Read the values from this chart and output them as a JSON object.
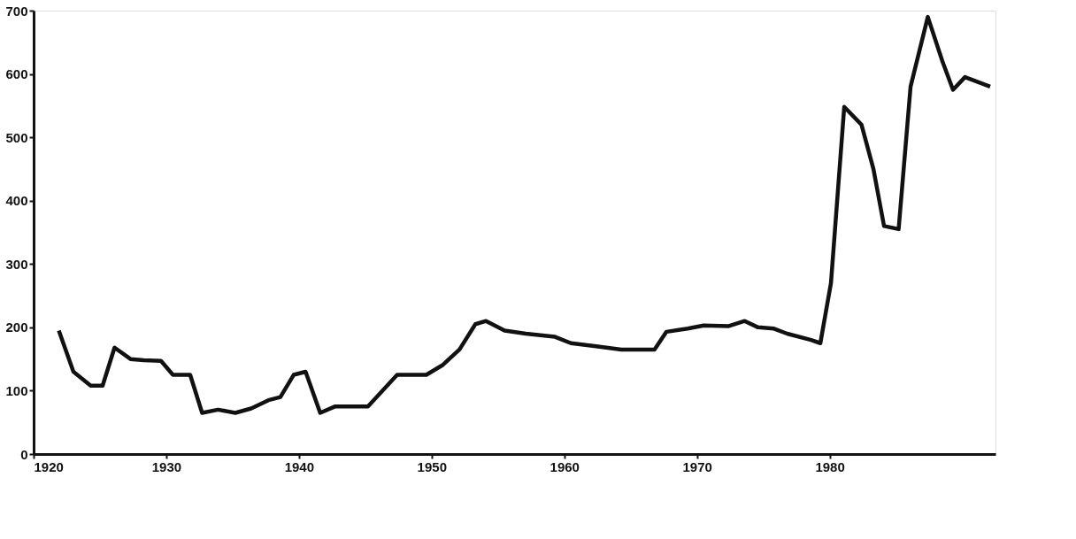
{
  "chart_data": {
    "type": "line",
    "grid": false,
    "marker": "none",
    "line_style": "solid",
    "xlim": [
      1920,
      1992.5
    ],
    "xticks": [
      1920,
      1930,
      1940,
      1950,
      1960,
      1970,
      1980
    ],
    "ylim": [
      0,
      700
    ],
    "yticks": [
      0,
      100,
      200,
      300,
      400,
      500,
      600,
      700
    ],
    "series": [
      {
        "color": "#111111",
        "x": [
          1921.9,
          1923.0,
          1924.3,
          1925.2,
          1926.1,
          1927.3,
          1928.3,
          1929.6,
          1930.5,
          1931.8,
          1932.7,
          1933.9,
          1935.2,
          1936.4,
          1937.7,
          1938.6,
          1939.6,
          1940.5,
          1941.6,
          1942.7,
          1945.2,
          1947.4,
          1949.6,
          1950.8,
          1952.1,
          1953.3,
          1954.1,
          1955.5,
          1957.1,
          1959.3,
          1960.5,
          1962.4,
          1964.3,
          1965.2,
          1966.8,
          1967.7,
          1969.3,
          1970.5,
          1972.4,
          1973.6,
          1974.6,
          1975.8,
          1976.8,
          1978.6,
          1979.3,
          1980.1,
          1981.1,
          1982.4,
          1983.3,
          1984.1,
          1985.2,
          1986.1,
          1987.4,
          1988.5,
          1989.3,
          1990.2,
          1992.1
        ],
        "values": [
          195,
          130,
          108,
          108,
          168,
          150,
          148,
          147,
          125,
          125,
          65,
          70,
          65,
          72,
          85,
          90,
          125,
          130,
          65,
          75,
          75,
          125,
          125,
          140,
          165,
          205,
          210,
          195,
          190,
          185,
          175,
          170,
          165,
          165,
          165,
          193,
          198,
          203,
          202,
          210,
          200,
          198,
          190,
          180,
          175,
          270,
          548,
          520,
          450,
          360,
          355,
          580,
          690,
          620,
          575,
          595,
          580
        ]
      }
    ]
  }
}
